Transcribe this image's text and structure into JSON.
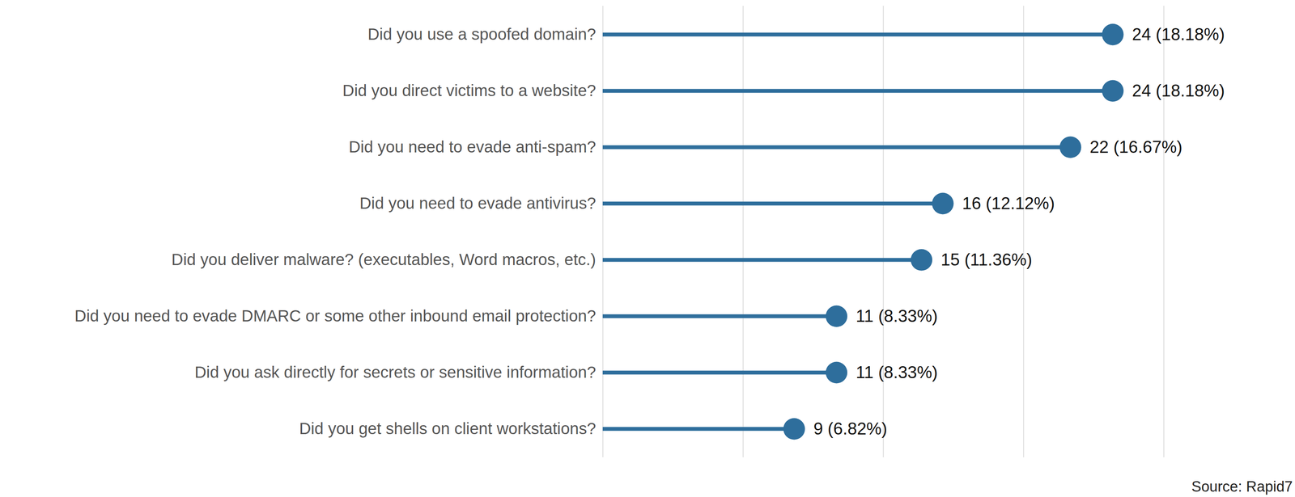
{
  "chart_data": {
    "type": "lollipop",
    "orientation": "horizontal",
    "caption": "Source: Rapid7",
    "categories": [
      "Did you use a spoofed domain?",
      "Did you direct victims to a website?",
      "Did you need to evade anti-spam?",
      "Did you need to evade antivirus?",
      "Did you deliver malware? (executables, Word macros, etc.)",
      "Did you need to evade DMARC or some other inbound email protection?",
      "Did you ask directly for secrets or sensitive information?",
      "Did you get shells on client workstations?"
    ],
    "values": [
      18.18,
      18.18,
      16.67,
      12.12,
      11.36,
      8.33,
      8.33,
      6.82
    ],
    "value_labels": [
      "24 (18.18%)",
      "24 (18.18%)",
      "22 (16.67%)",
      "16 (12.12%)",
      "15 (11.36%)",
      "11 (8.33%)",
      "11 (8.33%)",
      "9 (6.82%)"
    ],
    "color": "#2e6e9c",
    "marker": "circle",
    "xlim": [
      0,
      20
    ],
    "xticks": [
      0,
      5,
      10,
      15,
      20
    ],
    "grid": true,
    "data_labels": true,
    "tick_labels": "y"
  }
}
